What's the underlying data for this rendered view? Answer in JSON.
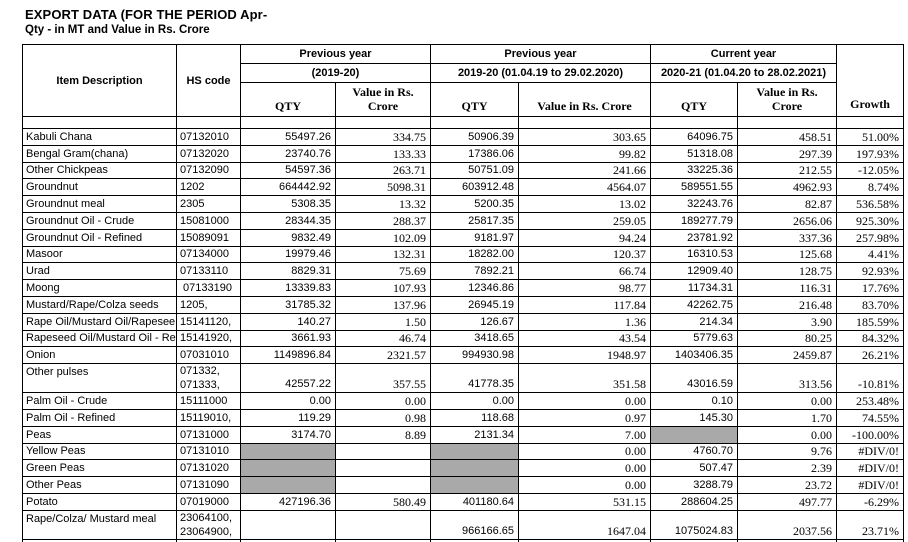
{
  "page": {
    "title": "EXPORT DATA (FOR THE PERIOD Apr-",
    "subtitle": "Qty - in MT and Value in Rs. Crore"
  },
  "colors": {
    "background": "#ffffff",
    "grid_line": "#000000",
    "shaded_cell": "#a9a9a9"
  },
  "table": {
    "header": {
      "item_description": "Item Description",
      "hs_code": "HS code",
      "groups": [
        {
          "title": "Previous year",
          "period": "(2019-20)"
        },
        {
          "title": "Previous year",
          "period": "2019-20 (01.04.19 to 29.02.2020)"
        },
        {
          "title": "Current year",
          "period": "2020-21 (01.04.20 to 28.02.2021)"
        }
      ],
      "qty_label": "QTY",
      "value_label_line1": "Value in Rs.",
      "value_label_line2": "Crore",
      "value_label_single": "Value in Rs. Crore",
      "growth_label": "Growth"
    },
    "rows": [
      {
        "item": "Kabuli Chana",
        "hs": [
          "07132010"
        ],
        "cells": [
          "55497.26",
          "334.75",
          "50906.39",
          "303.65",
          "64096.75",
          "458.51",
          "51.00%"
        ]
      },
      {
        "item": "Bengal Gram(chana)",
        "hs": [
          "07132020"
        ],
        "cells": [
          "23740.76",
          "133.33",
          "17386.06",
          "99.82",
          "51318.08",
          "297.39",
          "197.93%"
        ]
      },
      {
        "item": "Other Chickpeas",
        "hs": [
          "07132090"
        ],
        "cells": [
          "54597.36",
          "263.71",
          "50751.09",
          "241.66",
          "33225.36",
          "212.55",
          "-12.05%"
        ]
      },
      {
        "item": "Groundnut",
        "hs": [
          "1202"
        ],
        "cells": [
          "664442.92",
          "5098.31",
          "603912.48",
          "4564.07",
          "589551.55",
          "4962.93",
          "8.74%"
        ]
      },
      {
        "item": "Groundnut meal",
        "hs": [
          "2305"
        ],
        "cells": [
          "5308.35",
          "13.32",
          "5200.35",
          "13.02",
          "32243.76",
          "82.87",
          "536.58%"
        ]
      },
      {
        "item": "Groundnut Oil - Crude",
        "hs": [
          "15081000"
        ],
        "cells": [
          "28344.35",
          "288.37",
          "25817.35",
          "259.05",
          "189277.79",
          "2656.06",
          "925.30%"
        ]
      },
      {
        "item": "Groundnut Oil - Refined",
        "hs": [
          "15089091"
        ],
        "cells": [
          "9832.49",
          "102.09",
          "9181.97",
          "94.24",
          "23781.92",
          "337.36",
          "257.98%"
        ]
      },
      {
        "item": "Masoor",
        "hs": [
          "07134000"
        ],
        "cells": [
          "19979.46",
          "132.31",
          "18282.00",
          "120.37",
          "16310.53",
          "125.68",
          "4.41%"
        ]
      },
      {
        "item": "Urad",
        "hs": [
          "07133110"
        ],
        "cells": [
          "8829.31",
          "75.69",
          "7892.21",
          "66.74",
          "12909.40",
          "128.75",
          "92.93%"
        ]
      },
      {
        "item": "Moong",
        "hs": [
          " 07133190"
        ],
        "cells": [
          "13339.83",
          "107.93",
          "12346.86",
          "98.77",
          "11734.31",
          "116.31",
          "17.76%"
        ]
      },
      {
        "item": "Mustard/Rape/Colza seeds",
        "hs": [
          "1205,"
        ],
        "cells": [
          "31785.32",
          "137.96",
          "26945.19",
          "117.84",
          "42262.75",
          "216.48",
          "83.70%"
        ]
      },
      {
        "item": "Rape Oil/Mustard Oil/Rapesee",
        "hs": [
          "15141120,"
        ],
        "cells": [
          "140.27",
          "1.50",
          "126.67",
          "1.36",
          "214.34",
          "3.90",
          "185.59%"
        ]
      },
      {
        "item": "Rapeseed Oil/Mustard Oil - Re",
        "hs": [
          "15141920,"
        ],
        "cells": [
          "3661.93",
          "46.74",
          "3418.65",
          "43.54",
          "5779.63",
          "80.25",
          "84.32%"
        ]
      },
      {
        "item": "Onion",
        "hs": [
          "07031010"
        ],
        "cells": [
          "1149896.84",
          "2321.57",
          "994930.98",
          "1948.97",
          "1403406.35",
          "2459.87",
          "26.21%"
        ]
      },
      {
        "item": "Other pulses",
        "hs": [
          "071332,",
          "071333,"
        ],
        "two_line": true,
        "cells": [
          "42557.22",
          "357.55",
          "41778.35",
          "351.58",
          "43016.59",
          "313.56",
          "-10.81%"
        ]
      },
      {
        "item": "Palm Oil - Crude",
        "hs": [
          "15111000"
        ],
        "cells": [
          "0.00",
          "0.00",
          "0.00",
          "0.00",
          "0.10",
          "0.00",
          "253.48%"
        ]
      },
      {
        "item": "Palm Oil - Refined",
        "hs": [
          "15119010,"
        ],
        "cells": [
          "119.29",
          "0.98",
          "118.68",
          "0.97",
          "145.30",
          "1.70",
          "74.55%"
        ]
      },
      {
        "item": "Peas",
        "hs": [
          "07131000"
        ],
        "cells": [
          "3174.70",
          "8.89",
          "2131.34",
          "7.00",
          "",
          "0.00",
          "-100.00%"
        ],
        "gray": [
          4
        ]
      },
      {
        "item": "Yellow Peas",
        "hs": [
          "07131010"
        ],
        "cells": [
          "",
          "",
          "",
          "0.00",
          "4760.70",
          "9.76",
          "#DIV/0!"
        ],
        "gray": [
          0,
          2
        ]
      },
      {
        "item": "Green Peas",
        "hs": [
          "07131020"
        ],
        "cells": [
          "",
          "",
          "",
          "0.00",
          "507.47",
          "2.39",
          "#DIV/0!"
        ],
        "gray": [
          0,
          2
        ]
      },
      {
        "item": "Other Peas",
        "hs": [
          "07131090"
        ],
        "cells": [
          "",
          "",
          "",
          "0.00",
          "3288.79",
          "23.72",
          "#DIV/0!"
        ],
        "gray": [
          0,
          2
        ]
      },
      {
        "item": "Potato",
        "hs": [
          "07019000"
        ],
        "cells": [
          "427196.36",
          "580.49",
          "401180.64",
          "531.15",
          "288604.25",
          "497.77",
          "-6.29%"
        ]
      },
      {
        "item": "Rape/Colza/ Mustard meal",
        "hs": [
          "23064100,",
          "23064900,"
        ],
        "two_line": true,
        "cells": [
          "",
          "",
          "966166.65",
          "1647.04",
          "1075024.83",
          "2037.56",
          "23.71%"
        ]
      }
    ]
  }
}
